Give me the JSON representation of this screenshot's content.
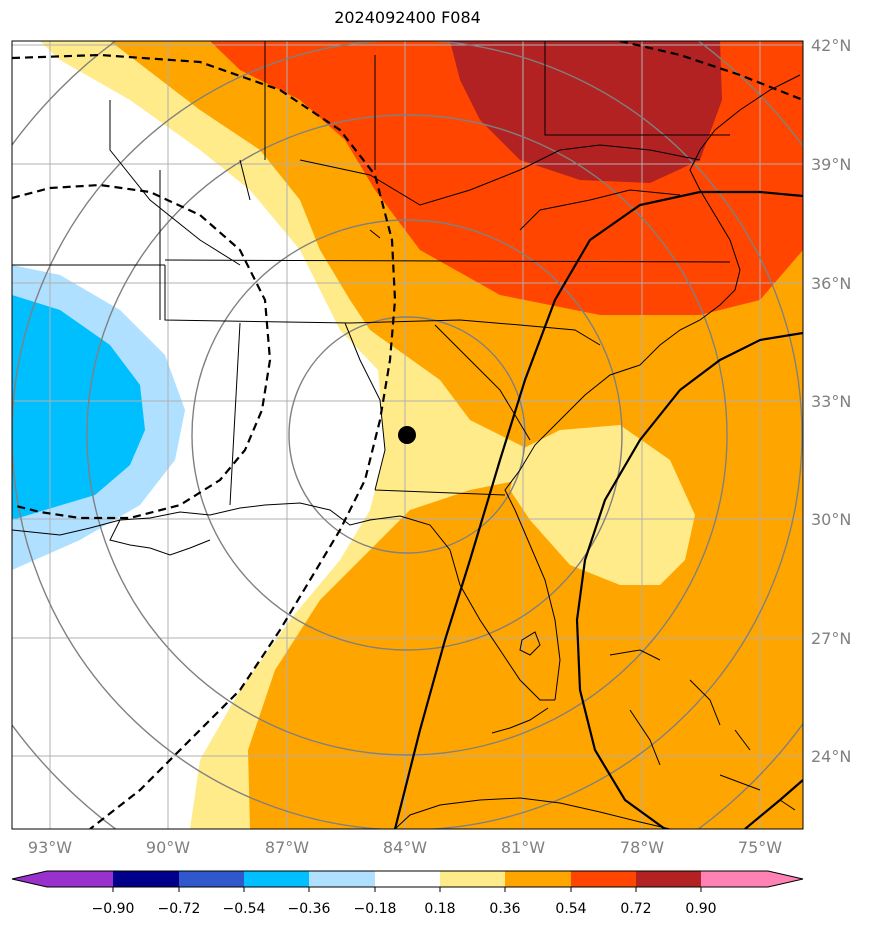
{
  "title": "2024092400 F084",
  "longitude_labels": [
    "93°W",
    "90°W",
    "87°W",
    "84°W",
    "81°W",
    "78°W",
    "75°W"
  ],
  "latitude_labels": [
    "42°N",
    "39°N",
    "36°N",
    "33°N",
    "30°N",
    "27°N",
    "24°N"
  ],
  "colorbar": {
    "colors": [
      "#9932cc",
      "#00008b",
      "#3157cc",
      "#00bfff",
      "#b0e0ff",
      "#ffffff",
      "#ffeb8a",
      "#ffa500",
      "#ff4500",
      "#b22222",
      "#ff82b4"
    ],
    "labels": [
      "−0.90",
      "−0.72",
      "−0.54",
      "−0.36",
      "−0.18",
      "0.18",
      "0.36",
      "0.54",
      "0.72",
      "0.90"
    ]
  },
  "storm_marker": {
    "lon": -84.0,
    "lat": 32.2
  },
  "fill_colors": {
    "light_yellow": "#ffeb8a",
    "orange": "#ffa500",
    "red_orange": "#ff4500",
    "dark_red": "#b22222",
    "cyan": "#00bfff",
    "light_blue": "#b0e0ff"
  },
  "grid_color": "#b0b0b0",
  "range_ring_color": "#808080"
}
